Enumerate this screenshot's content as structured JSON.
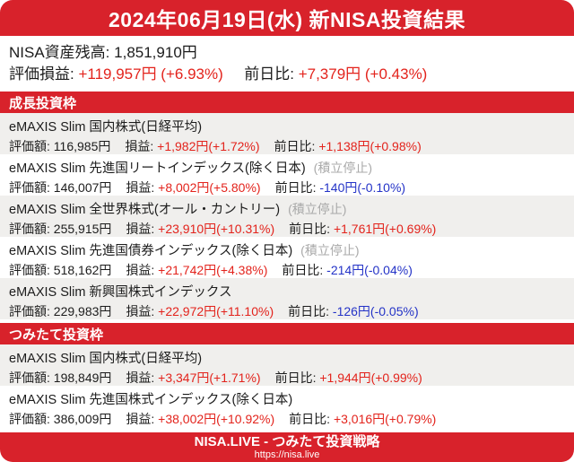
{
  "colors": {
    "brand-red": "#d8222b",
    "positive": "#e3231c",
    "negative": "#2433c7",
    "muted": "#a9a9a9",
    "row-alt": "#f0efed",
    "text": "#1c1c1c"
  },
  "header": {
    "title": "2024年06月19日(水) 新NISA投資結果"
  },
  "summary": {
    "balance_label": "NISA資産残高:",
    "balance_value": "1,851,910円",
    "pl_label": "評価損益:",
    "pl_value": "+119,957円 (+6.93%)",
    "pl_color": "#e3231c",
    "dod_label": "前日比:",
    "dod_value": "+7,379円 (+0.43%)",
    "dod_color": "#e3231c"
  },
  "labels": {
    "value": "評価額:",
    "pl": "損益:",
    "dod": "前日比:"
  },
  "sections": [
    {
      "title": "成長投資枠",
      "funds": [
        {
          "name": "eMAXIS Slim 国内株式(日経平均)",
          "suspended": "",
          "value": "116,985円",
          "pl": "+1,982円(+1.72%)",
          "pl_color": "#e3231c",
          "dod": "+1,138円(+0.98%)",
          "dod_color": "#e3231c"
        },
        {
          "name": "eMAXIS Slim 先進国リートインデックス(除く日本)",
          "suspended": "(積立停止)",
          "value": "146,007円",
          "pl": "+8,002円(+5.80%)",
          "pl_color": "#e3231c",
          "dod": "-140円(-0.10%)",
          "dod_color": "#2433c7"
        },
        {
          "name": "eMAXIS Slim 全世界株式(オール・カントリー)",
          "suspended": "(積立停止)",
          "value": "255,915円",
          "pl": "+23,910円(+10.31%)",
          "pl_color": "#e3231c",
          "dod": "+1,761円(+0.69%)",
          "dod_color": "#e3231c"
        },
        {
          "name": "eMAXIS Slim 先進国債券インデックス(除く日本)",
          "suspended": "(積立停止)",
          "value": "518,162円",
          "pl": "+21,742円(+4.38%)",
          "pl_color": "#e3231c",
          "dod": "-214円(-0.04%)",
          "dod_color": "#2433c7"
        },
        {
          "name": "eMAXIS Slim 新興国株式インデックス",
          "suspended": "",
          "value": "229,983円",
          "pl": "+22,972円(+11.10%)",
          "pl_color": "#e3231c",
          "dod": "-126円(-0.05%)",
          "dod_color": "#2433c7"
        }
      ]
    },
    {
      "title": "つみたて投資枠",
      "funds": [
        {
          "name": "eMAXIS Slim 国内株式(日経平均)",
          "suspended": "",
          "value": "198,849円",
          "pl": "+3,347円(+1.71%)",
          "pl_color": "#e3231c",
          "dod": "+1,944円(+0.99%)",
          "dod_color": "#e3231c"
        },
        {
          "name": "eMAXIS Slim 先進国株式インデックス(除く日本)",
          "suspended": "",
          "value": "386,009円",
          "pl": "+38,002円(+10.92%)",
          "pl_color": "#e3231c",
          "dod": "+3,016円(+0.79%)",
          "dod_color": "#e3231c"
        }
      ]
    }
  ],
  "footer": {
    "title": "NISA.LIVE - つみたて投資戦略",
    "url": "https://nisa.live"
  }
}
